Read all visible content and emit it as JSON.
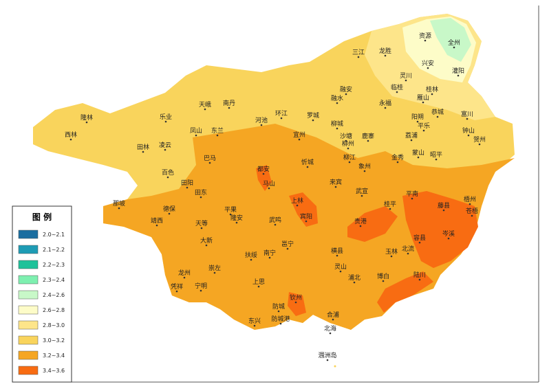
{
  "legend": {
    "title": "图 例",
    "items": [
      {
        "label": "2.0~2.1",
        "color": "#1b6ea0"
      },
      {
        "label": "2.1~2.2",
        "color": "#1e9cb5"
      },
      {
        "label": "2.2~2.3",
        "color": "#1ec29a"
      },
      {
        "label": "2.3~2.4",
        "color": "#7ef0b0"
      },
      {
        "label": "2.4~2.6",
        "color": "#c8f8c8"
      },
      {
        "label": "2.6~2.8",
        "color": "#fdfcc8"
      },
      {
        "label": "2.8~3.0",
        "color": "#fde58a"
      },
      {
        "label": "3.0~3.2",
        "color": "#f9d45c"
      },
      {
        "label": "3.2~3.4",
        "color": "#f5a623"
      },
      {
        "label": "3.4~3.6",
        "color": "#f86c12"
      }
    ]
  },
  "places": [
    "资源",
    "全州",
    "三江",
    "龙胜",
    "兴安",
    "灌阳",
    "灵川",
    "临桂",
    "桂林",
    "融安",
    "融水",
    "雁山",
    "永福",
    "天峨",
    "南丹",
    "环江",
    "河池",
    "罗城",
    "乐业",
    "隆林",
    "阳朔",
    "恭城",
    "富川",
    "平乐",
    "钟山",
    "凤山",
    "东兰",
    "宜州",
    "柳城",
    "鹿寨",
    "荔浦",
    "西林",
    "沙塘",
    "柳州",
    "贺州",
    "田林",
    "凌云",
    "蒙山",
    "昭平",
    "金秀",
    "巴马",
    "忻城",
    "柳江",
    "都安",
    "象州",
    "百色",
    "田阳",
    "马山",
    "来宾",
    "田东",
    "武宣",
    "平南",
    "梧州",
    "那坡",
    "上林",
    "桂平",
    "藤县",
    "德保",
    "平果",
    "隆安",
    "宾阳",
    "苍梧",
    "靖西",
    "天等",
    "武鸣",
    "贵港",
    "岑溪",
    "容县",
    "大新",
    "邕宁",
    "南宁",
    "北流",
    "横县",
    "扶绥",
    "玉林",
    "崇左",
    "灵山",
    "龙州",
    "浦北",
    "博白",
    "陆川",
    "凭祥",
    "宁明",
    "上思",
    "钦州",
    "防城",
    "合浦",
    "东兴",
    "防城港",
    "北海",
    "涠洲岛"
  ]
}
